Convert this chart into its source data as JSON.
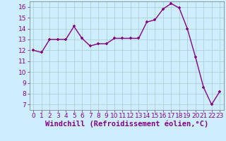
{
  "x": [
    0,
    1,
    2,
    3,
    4,
    5,
    6,
    7,
    8,
    9,
    10,
    11,
    12,
    13,
    14,
    15,
    16,
    17,
    18,
    19,
    20,
    21,
    22,
    23
  ],
  "y": [
    12.0,
    11.8,
    13.0,
    13.0,
    13.0,
    14.2,
    13.1,
    12.4,
    12.6,
    12.6,
    13.1,
    13.1,
    13.1,
    13.1,
    14.6,
    14.8,
    15.8,
    16.3,
    15.9,
    14.0,
    11.4,
    8.6,
    7.0,
    8.2
  ],
  "line_color": "#880088",
  "marker_color": "#880088",
  "bg_color": "#cceeff",
  "grid_color": "#aacccc",
  "xlabel": "Windchill (Refroidissement éolien,°C)",
  "xlim": [
    -0.5,
    23.5
  ],
  "ylim": [
    6.5,
    16.5
  ],
  "yticks": [
    7,
    8,
    9,
    10,
    11,
    12,
    13,
    14,
    15,
    16
  ],
  "xticks": [
    0,
    1,
    2,
    3,
    4,
    5,
    6,
    7,
    8,
    9,
    10,
    11,
    12,
    13,
    14,
    15,
    16,
    17,
    18,
    19,
    20,
    21,
    22,
    23
  ],
  "tick_label_fontsize": 6.5,
  "xlabel_fontsize": 7.5
}
